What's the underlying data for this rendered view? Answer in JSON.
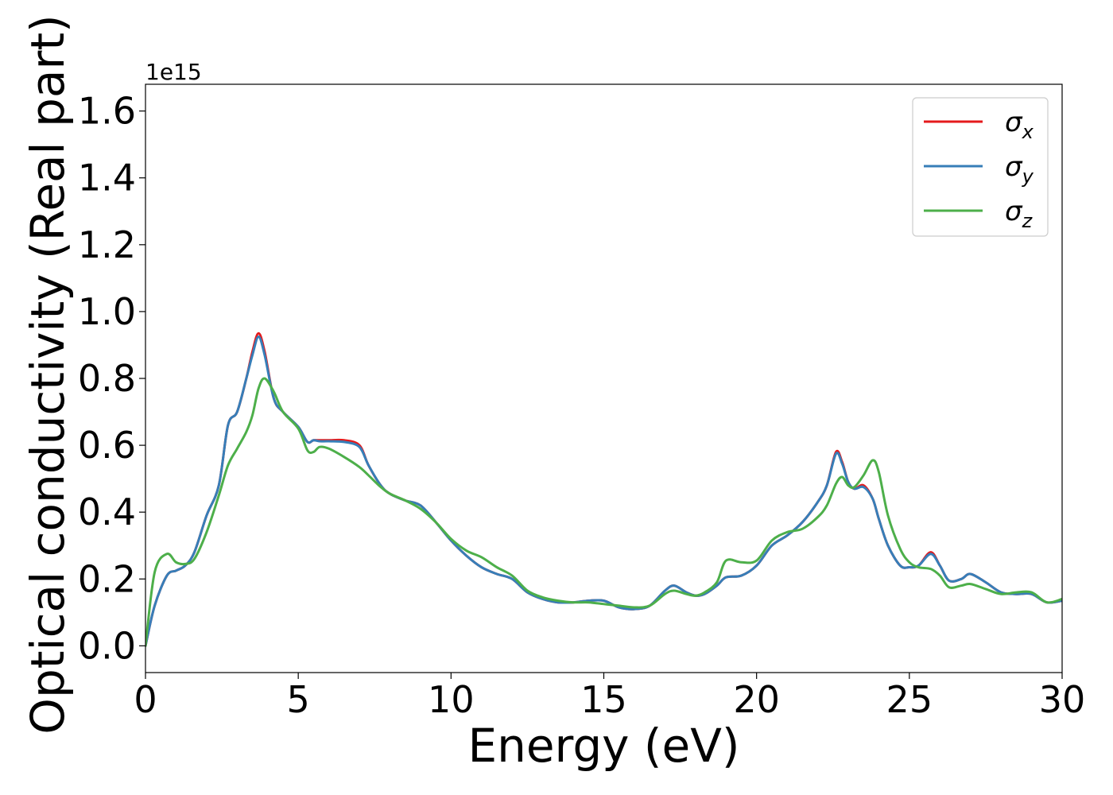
{
  "chart_data": {
    "type": "line",
    "xlabel": "Energy (eV)",
    "ylabel": "Optical conductivity (Real part)",
    "y_offset_label": "1e15",
    "xlim": [
      0,
      30
    ],
    "ylim": [
      -0.08,
      1.68
    ],
    "x_ticks": [
      0,
      5,
      10,
      15,
      20,
      25,
      30
    ],
    "x_tick_labels": [
      "0",
      "5",
      "10",
      "15",
      "20",
      "25",
      "30"
    ],
    "y_ticks": [
      0.0,
      0.2,
      0.4,
      0.6,
      0.8,
      1.0,
      1.2,
      1.4,
      1.6
    ],
    "y_tick_labels": [
      "0.0",
      "0.2",
      "0.4",
      "0.6",
      "0.8",
      "1.0",
      "1.2",
      "1.4",
      "1.6"
    ],
    "grid": false,
    "legend_position": "top-right",
    "series": [
      {
        "name": "σx",
        "legend_main": "σ",
        "legend_sub": "x",
        "color": "#e41a1c",
        "x": [
          0,
          0.3,
          0.7,
          1.0,
          1.3,
          1.6,
          2.0,
          2.4,
          2.7,
          3.0,
          3.3,
          3.5,
          3.7,
          3.9,
          4.2,
          4.5,
          5.0,
          5.3,
          5.5,
          5.7,
          6.0,
          6.5,
          7.0,
          7.3,
          7.7,
          8.0,
          8.5,
          9.0,
          9.5,
          10.0,
          10.5,
          11.0,
          11.5,
          12.0,
          12.5,
          13.0,
          13.5,
          14.0,
          14.5,
          15.0,
          15.5,
          16.0,
          16.5,
          17.0,
          17.3,
          17.7,
          18.0,
          18.3,
          18.7,
          19.0,
          19.5,
          20.0,
          20.5,
          21.0,
          21.5,
          22.0,
          22.3,
          22.6,
          22.8,
          23.0,
          23.2,
          23.5,
          23.8,
          24.0,
          24.3,
          24.7,
          25.0,
          25.3,
          25.7,
          26.0,
          26.3,
          26.7,
          27.0,
          27.5,
          28.0,
          28.5,
          29.0,
          29.5,
          30.0
        ],
        "values": [
          0.0,
          0.12,
          0.21,
          0.225,
          0.24,
          0.28,
          0.39,
          0.48,
          0.66,
          0.7,
          0.8,
          0.88,
          0.935,
          0.88,
          0.74,
          0.7,
          0.655,
          0.61,
          0.615,
          0.615,
          0.615,
          0.615,
          0.6,
          0.54,
          0.48,
          0.455,
          0.435,
          0.42,
          0.37,
          0.315,
          0.27,
          0.235,
          0.215,
          0.2,
          0.16,
          0.14,
          0.13,
          0.13,
          0.135,
          0.135,
          0.115,
          0.11,
          0.12,
          0.165,
          0.18,
          0.16,
          0.15,
          0.155,
          0.18,
          0.205,
          0.21,
          0.24,
          0.3,
          0.33,
          0.37,
          0.43,
          0.48,
          0.58,
          0.55,
          0.49,
          0.47,
          0.48,
          0.44,
          0.38,
          0.3,
          0.24,
          0.235,
          0.24,
          0.28,
          0.24,
          0.195,
          0.2,
          0.215,
          0.19,
          0.16,
          0.155,
          0.155,
          0.13,
          0.135
        ]
      },
      {
        "name": "σy",
        "legend_main": "σ",
        "legend_sub": "y",
        "color": "#377eb8",
        "x": [
          0,
          0.3,
          0.7,
          1.0,
          1.3,
          1.6,
          2.0,
          2.4,
          2.7,
          3.0,
          3.3,
          3.5,
          3.7,
          3.9,
          4.2,
          4.5,
          5.0,
          5.3,
          5.5,
          5.7,
          6.0,
          6.5,
          7.0,
          7.3,
          7.7,
          8.0,
          8.5,
          9.0,
          9.5,
          10.0,
          10.5,
          11.0,
          11.5,
          12.0,
          12.5,
          13.0,
          13.5,
          14.0,
          14.5,
          15.0,
          15.5,
          16.0,
          16.5,
          17.0,
          17.3,
          17.7,
          18.0,
          18.3,
          18.7,
          19.0,
          19.5,
          20.0,
          20.5,
          21.0,
          21.5,
          22.0,
          22.3,
          22.6,
          22.8,
          23.0,
          23.2,
          23.5,
          23.8,
          24.0,
          24.3,
          24.7,
          25.0,
          25.3,
          25.7,
          26.0,
          26.3,
          26.7,
          27.0,
          27.5,
          28.0,
          28.5,
          29.0,
          29.5,
          30.0
        ],
        "values": [
          0.0,
          0.12,
          0.21,
          0.225,
          0.24,
          0.28,
          0.39,
          0.48,
          0.66,
          0.7,
          0.8,
          0.87,
          0.925,
          0.87,
          0.74,
          0.7,
          0.655,
          0.61,
          0.615,
          0.612,
          0.612,
          0.61,
          0.595,
          0.54,
          0.48,
          0.455,
          0.435,
          0.42,
          0.37,
          0.315,
          0.27,
          0.235,
          0.215,
          0.2,
          0.16,
          0.14,
          0.13,
          0.13,
          0.135,
          0.135,
          0.115,
          0.11,
          0.12,
          0.165,
          0.18,
          0.16,
          0.15,
          0.155,
          0.18,
          0.205,
          0.21,
          0.24,
          0.3,
          0.33,
          0.37,
          0.43,
          0.48,
          0.575,
          0.545,
          0.49,
          0.47,
          0.475,
          0.44,
          0.38,
          0.3,
          0.24,
          0.235,
          0.24,
          0.275,
          0.24,
          0.195,
          0.2,
          0.215,
          0.19,
          0.16,
          0.155,
          0.155,
          0.13,
          0.135
        ]
      },
      {
        "name": "σz",
        "legend_main": "σ",
        "legend_sub": "z",
        "color": "#4daf4a",
        "x": [
          0,
          0.3,
          0.7,
          1.0,
          1.3,
          1.6,
          2.0,
          2.4,
          2.7,
          3.0,
          3.3,
          3.5,
          3.7,
          3.9,
          4.2,
          4.5,
          5.0,
          5.3,
          5.5,
          5.7,
          6.0,
          6.5,
          7.0,
          7.3,
          7.7,
          8.0,
          8.5,
          9.0,
          9.5,
          10.0,
          10.5,
          11.0,
          11.5,
          12.0,
          12.5,
          13.0,
          13.5,
          14.0,
          14.5,
          15.0,
          15.5,
          16.0,
          16.5,
          17.0,
          17.3,
          17.7,
          18.0,
          18.3,
          18.7,
          19.0,
          19.5,
          20.0,
          20.5,
          21.0,
          21.5,
          22.0,
          22.3,
          22.6,
          22.8,
          23.0,
          23.2,
          23.5,
          23.8,
          24.0,
          24.3,
          24.7,
          25.0,
          25.3,
          25.7,
          26.0,
          26.3,
          26.7,
          27.0,
          27.5,
          28.0,
          28.5,
          29.0,
          29.5,
          30.0
        ],
        "values": [
          0.0,
          0.22,
          0.275,
          0.25,
          0.245,
          0.26,
          0.34,
          0.45,
          0.54,
          0.59,
          0.64,
          0.69,
          0.77,
          0.8,
          0.76,
          0.7,
          0.65,
          0.585,
          0.58,
          0.595,
          0.59,
          0.565,
          0.535,
          0.51,
          0.475,
          0.455,
          0.435,
          0.41,
          0.37,
          0.32,
          0.285,
          0.265,
          0.235,
          0.21,
          0.165,
          0.145,
          0.135,
          0.13,
          0.13,
          0.125,
          0.12,
          0.115,
          0.12,
          0.155,
          0.165,
          0.155,
          0.15,
          0.16,
          0.19,
          0.255,
          0.25,
          0.255,
          0.315,
          0.34,
          0.35,
          0.385,
          0.42,
          0.485,
          0.505,
          0.48,
          0.475,
          0.51,
          0.555,
          0.52,
          0.39,
          0.29,
          0.25,
          0.235,
          0.23,
          0.21,
          0.175,
          0.18,
          0.185,
          0.17,
          0.155,
          0.16,
          0.16,
          0.13,
          0.14
        ]
      }
    ]
  }
}
